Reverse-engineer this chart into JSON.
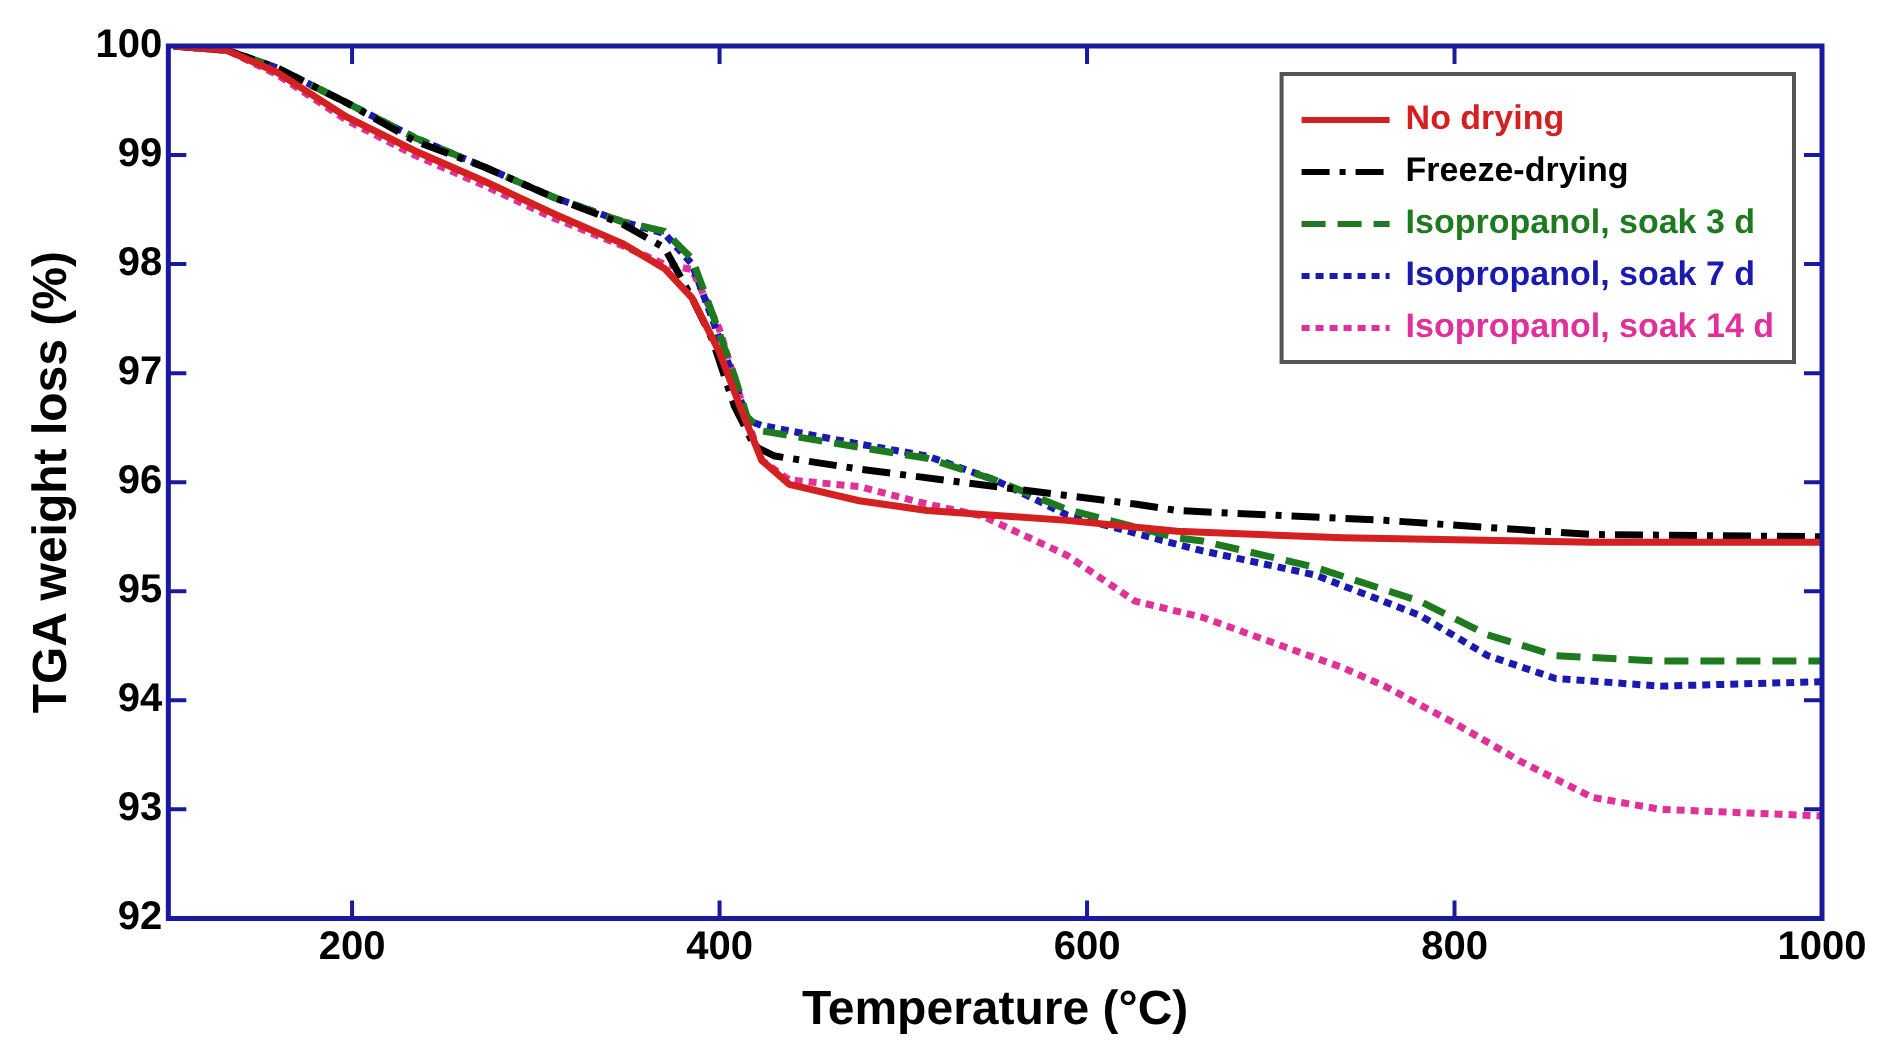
{
  "chart_data": {
    "type": "line",
    "xlabel": "Temperature (°C)",
    "ylabel": "TGA weight loss (%)",
    "xlim": [
      100,
      1000
    ],
    "xticks": [
      200,
      400,
      600,
      800,
      1000
    ],
    "ylim": [
      92,
      100
    ],
    "yticks": [
      92,
      93,
      94,
      95,
      96,
      97,
      98,
      99,
      100
    ],
    "grid": false,
    "legend": "top right",
    "marker": "none",
    "series": [
      {
        "name": "No drying",
        "color": "#d42020",
        "line_style": "solid",
        "x": [
          103,
          132,
          159,
          197,
          234,
          272,
          310,
          347,
          370,
          385,
          400,
          411,
          423,
          438,
          476,
          513,
          589,
          649,
          739,
          875,
          999
        ],
        "values": [
          100,
          99.96,
          99.76,
          99.35,
          99.04,
          98.76,
          98.46,
          98.19,
          97.96,
          97.69,
          97.19,
          96.7,
          96.2,
          95.98,
          95.83,
          95.74,
          95.65,
          95.55,
          95.49,
          95.45,
          95.45
        ]
      },
      {
        "name": "Freeze-drying",
        "color": "#000000",
        "line_style": "dashdot",
        "x": [
          103,
          132,
          159,
          197,
          234,
          272,
          310,
          347,
          370,
          385,
          396,
          408,
          419,
          430,
          476,
          550,
          626,
          649,
          762,
          875,
          999
        ],
        "values": [
          100,
          99.96,
          99.8,
          99.48,
          99.13,
          98.89,
          98.61,
          98.37,
          98.15,
          97.69,
          97.31,
          96.7,
          96.33,
          96.24,
          96.12,
          95.96,
          95.8,
          95.74,
          95.65,
          95.52,
          95.5
        ]
      },
      {
        "name": "Isopropanol, soak 3 d",
        "color": "#1e7a1e",
        "line_style": "dashed",
        "x": [
          103,
          132,
          159,
          197,
          234,
          272,
          310,
          347,
          370,
          385,
          396,
          408,
          415,
          423,
          476,
          513,
          550,
          589,
          649,
          663,
          724,
          781,
          818,
          855,
          912,
          999
        ],
        "values": [
          100,
          99.96,
          99.8,
          99.48,
          99.16,
          98.89,
          98.61,
          98.39,
          98.3,
          98.05,
          97.55,
          96.98,
          96.6,
          96.47,
          96.32,
          96.22,
          96.02,
          95.75,
          95.49,
          95.46,
          95.22,
          94.91,
          94.6,
          94.41,
          94.36,
          94.36
        ]
      },
      {
        "name": "Isopropanol, soak 7 d",
        "color": "#1a1ab0",
        "line_style": "dotted",
        "x": [
          103,
          132,
          159,
          197,
          234,
          272,
          310,
          347,
          370,
          385,
          396,
          408,
          415,
          423,
          476,
          513,
          550,
          589,
          649,
          663,
          724,
          781,
          818,
          855,
          912,
          999
        ],
        "values": [
          100,
          99.96,
          99.8,
          99.48,
          99.16,
          98.89,
          98.61,
          98.39,
          98.28,
          98.0,
          97.5,
          96.94,
          96.57,
          96.52,
          96.35,
          96.24,
          96.02,
          95.7,
          95.43,
          95.37,
          95.15,
          94.78,
          94.41,
          94.2,
          94.13,
          94.17
        ]
      },
      {
        "name": "Isopropanol, soak 14 d",
        "color": "#e0309a",
        "line_style": "dotted",
        "x": [
          103,
          132,
          159,
          197,
          234,
          272,
          310,
          347,
          370,
          385,
          400,
          415,
          423,
          438,
          476,
          513,
          543,
          589,
          626,
          663,
          739,
          762,
          799,
          837,
          875,
          912,
          999
        ],
        "values": [
          100,
          99.96,
          99.74,
          99.32,
          99.0,
          98.72,
          98.42,
          98.17,
          98.0,
          97.95,
          97.4,
          96.57,
          96.2,
          96.02,
          95.96,
          95.8,
          95.69,
          95.33,
          94.91,
          94.76,
          94.3,
          94.13,
          93.8,
          93.43,
          93.11,
          93.0,
          92.94
        ]
      }
    ]
  }
}
